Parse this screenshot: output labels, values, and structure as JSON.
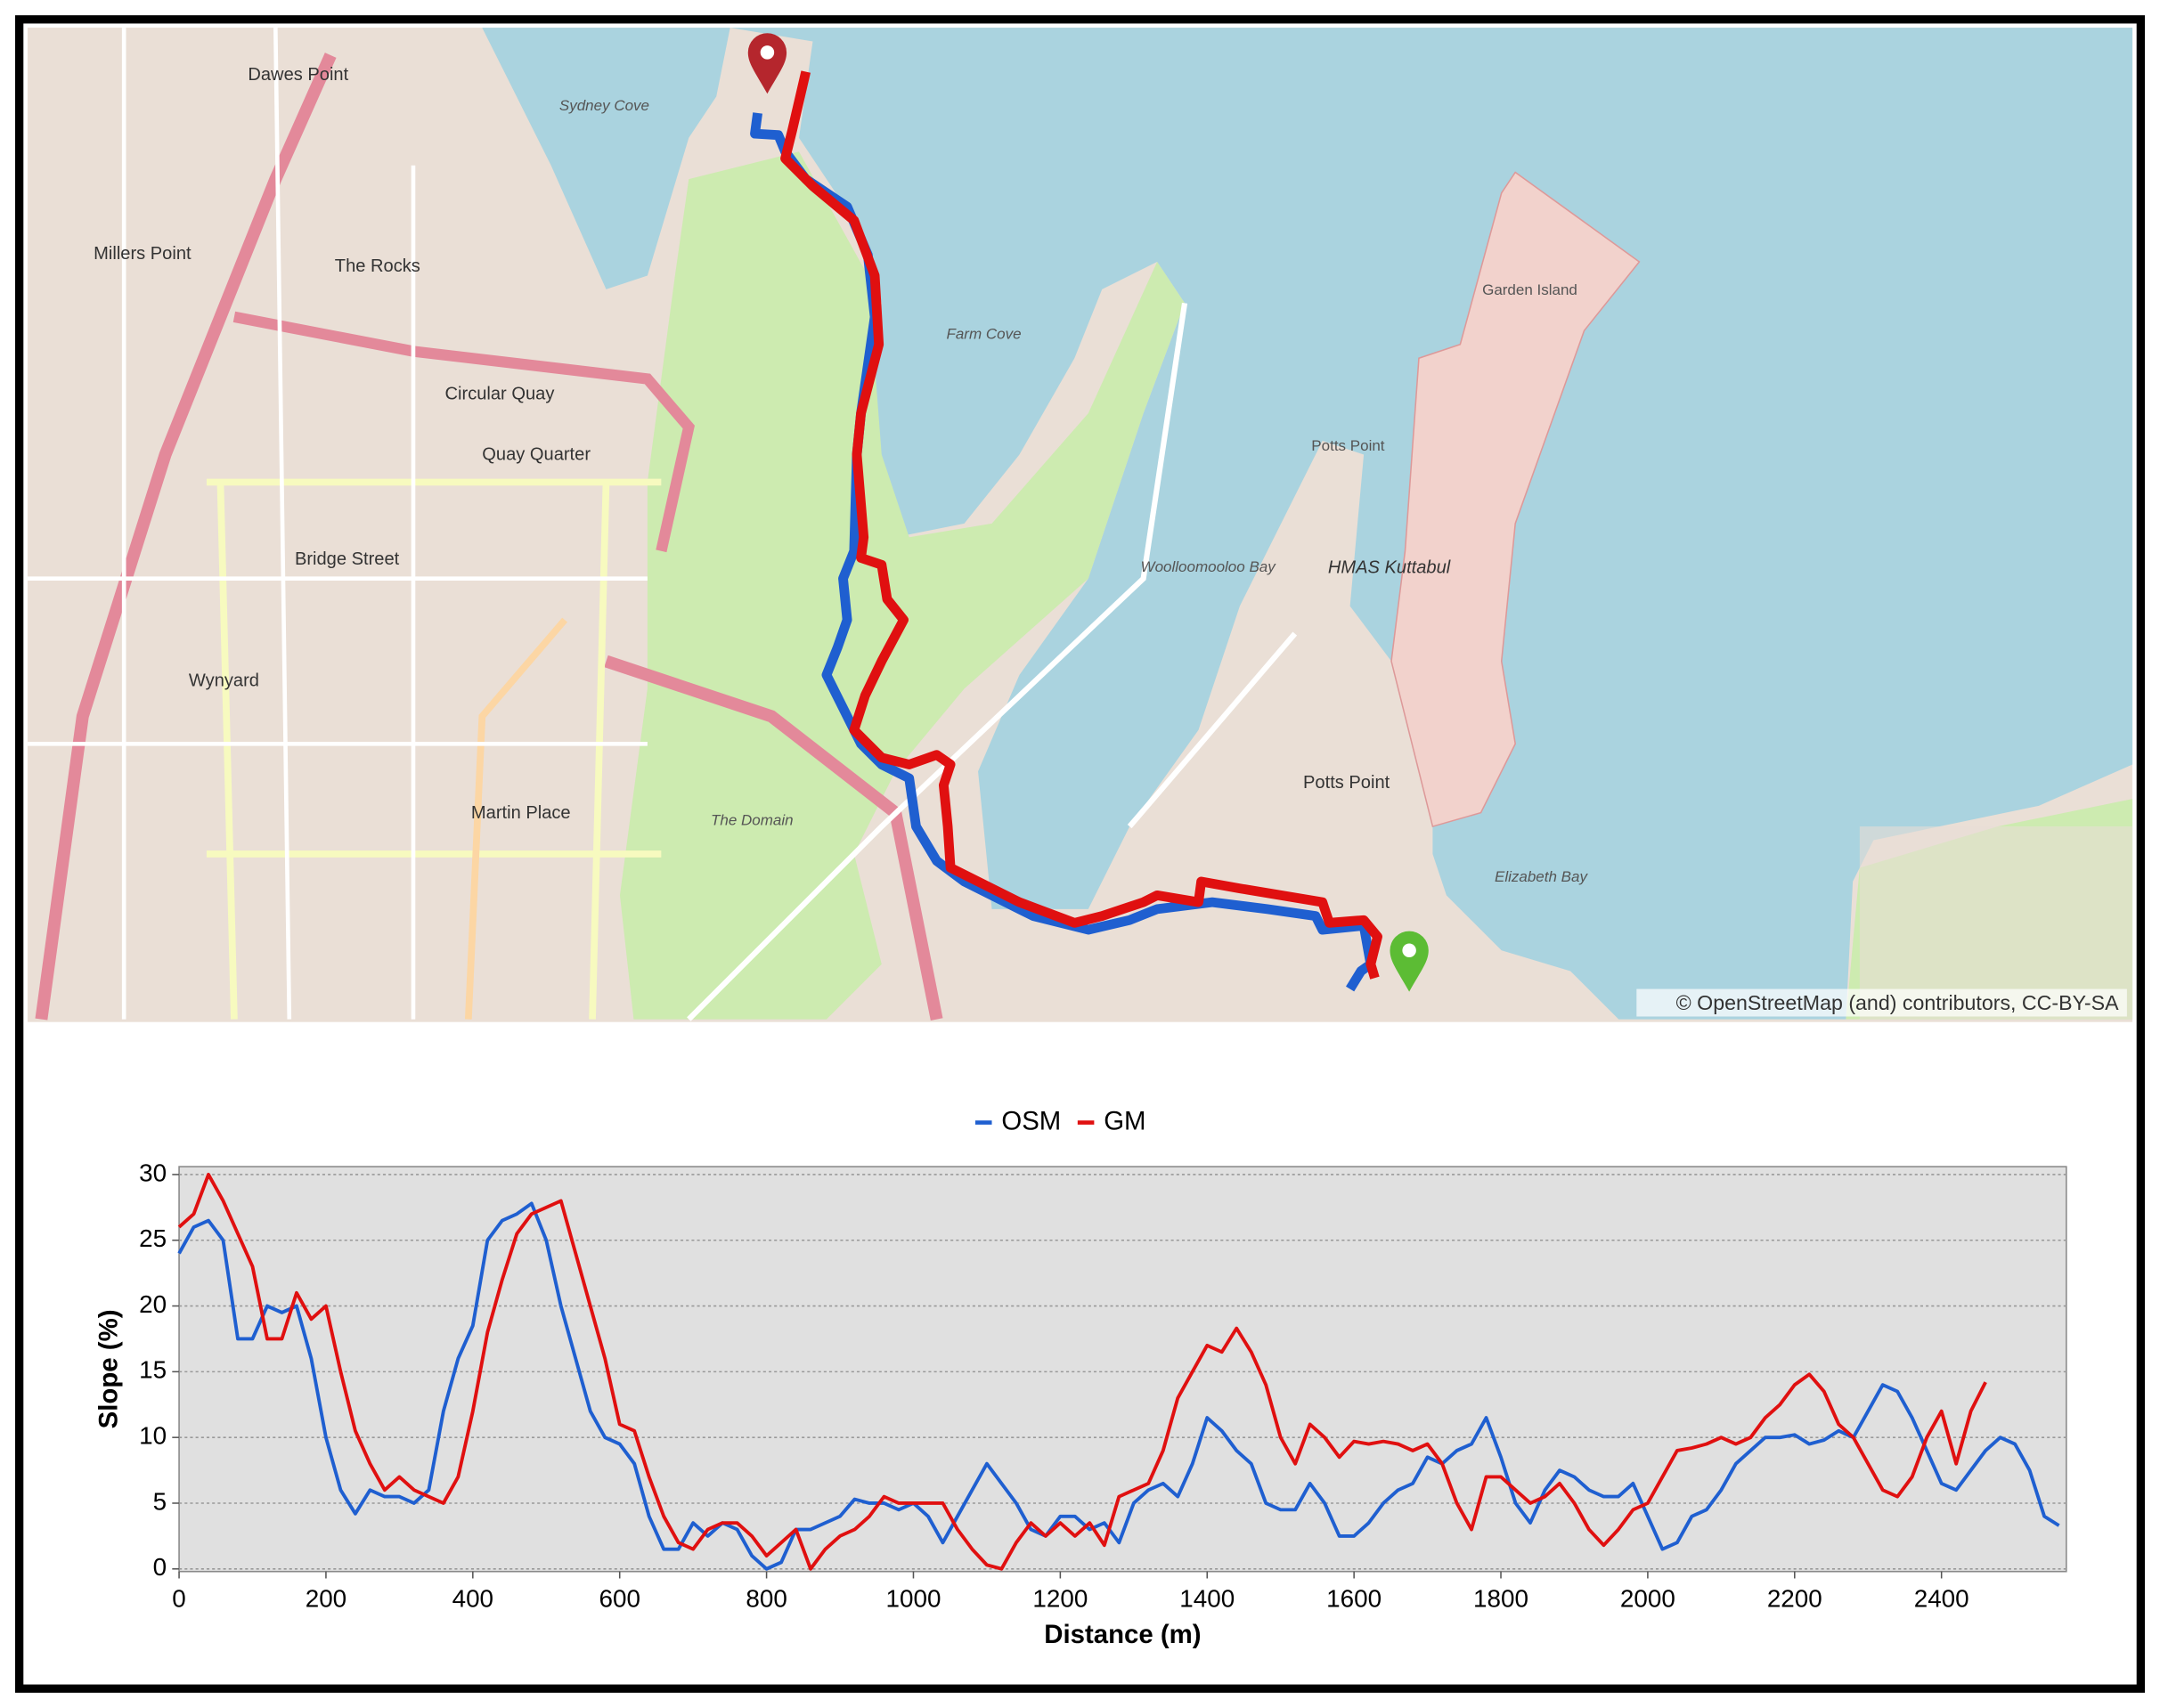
{
  "map": {
    "labels": [
      "Dawes Point",
      "Millers Point",
      "The Rocks",
      "Circular Quay",
      "Quay Quarter",
      "Bridge Street",
      "Wynyard",
      "Martin Place",
      "The Domain",
      "Farm Cove",
      "Woolloomooloo Bay",
      "Potts Point",
      "Potts Point",
      "Garden Island",
      "HMAS Kuttabul",
      "Elizabeth Bay",
      "Sydney Cove"
    ],
    "attribution": "© OpenStreetMap (and) contributors, CC-BY-SA"
  },
  "chart_data": {
    "type": "line",
    "x_label": "Distance (m)",
    "y_label": "Slope (%)",
    "x": [
      0,
      20,
      40,
      60,
      80,
      100,
      120,
      140,
      160,
      180,
      200,
      220,
      240,
      260,
      280,
      300,
      320,
      340,
      360,
      380,
      400,
      420,
      440,
      460,
      480,
      500,
      520,
      540,
      560,
      580,
      600,
      620,
      640,
      660,
      680,
      700,
      720,
      740,
      760,
      780,
      800,
      820,
      840,
      860,
      880,
      900,
      920,
      940,
      960,
      980,
      1000,
      1020,
      1040,
      1060,
      1080,
      1100,
      1120,
      1140,
      1160,
      1180,
      1200,
      1220,
      1240,
      1260,
      1280,
      1300,
      1320,
      1340,
      1360,
      1380,
      1400,
      1420,
      1440,
      1460,
      1480,
      1500,
      1520,
      1540,
      1560,
      1580,
      1600,
      1620,
      1640,
      1660,
      1680,
      1700,
      1720,
      1740,
      1760,
      1780,
      1800,
      1820,
      1840,
      1860,
      1880,
      1900,
      1920,
      1940,
      1960,
      1980,
      2000,
      2020,
      2040,
      2060,
      2080,
      2100,
      2120,
      2140,
      2160,
      2180,
      2200,
      2220,
      2240,
      2260,
      2280,
      2300,
      2320,
      2340,
      2360,
      2380,
      2400,
      2420,
      2440,
      2460,
      2480,
      2500,
      2520,
      2540,
      2560
    ],
    "series": [
      {
        "name": "OSM",
        "color": "#1f5fd0",
        "values": [
          24,
          26,
          26.5,
          25,
          17.5,
          17.5,
          20,
          19.5,
          20,
          16,
          10,
          6,
          4.2,
          6,
          5.5,
          5.5,
          5,
          6,
          12,
          16,
          18.5,
          25,
          26.5,
          27,
          27.8,
          25,
          20,
          16,
          12,
          10,
          9.5,
          8,
          4,
          1.5,
          1.5,
          3.5,
          2.5,
          3.5,
          3,
          1,
          0,
          0.5,
          3,
          3,
          3.5,
          4,
          5.3,
          5,
          5,
          4.5,
          5,
          4,
          2,
          4,
          6,
          8,
          6.5,
          5,
          3,
          2.5,
          4,
          4,
          3,
          3.5,
          2,
          5,
          6,
          6.5,
          5.5,
          8,
          11.5,
          10.5,
          9,
          8,
          5,
          4.5,
          4.5,
          6.5,
          5,
          2.5,
          2.5,
          3.5,
          5,
          6,
          6.5,
          8.5,
          8,
          9,
          9.5,
          11.5,
          8.5,
          5,
          3.5,
          6,
          7.5,
          7,
          6,
          5.5,
          5.5,
          6.5,
          4,
          1.5,
          2,
          4,
          4.5,
          6,
          8,
          9,
          10,
          10,
          10.2,
          9.5,
          9.8,
          10.5,
          10,
          12,
          14,
          13.5,
          11.5,
          9,
          6.5,
          6,
          7.5,
          9,
          10,
          9.5,
          7.5,
          4,
          3.3
        ]
      },
      {
        "name": "GM",
        "color": "#e01010",
        "values": [
          26,
          27,
          30,
          28,
          25.5,
          23,
          17.5,
          17.5,
          21,
          19,
          20,
          15,
          10.5,
          8,
          6,
          7,
          6,
          5.5,
          5,
          7,
          12,
          18,
          22,
          25.5,
          27,
          27.5,
          28,
          24,
          20,
          16,
          11,
          10.5,
          7,
          4,
          2,
          1.5,
          3,
          3.5,
          3.5,
          2.5,
          1,
          2,
          3,
          0,
          1.5,
          2.5,
          3,
          4,
          5.5,
          5,
          5,
          5,
          5,
          3,
          1.5,
          0.3,
          0,
          2,
          3.5,
          2.5,
          3.5,
          2.5,
          3.5,
          1.8,
          5.5,
          6,
          6.5,
          9,
          13,
          15,
          17,
          16.5,
          18.3,
          16.5,
          14,
          10,
          8,
          11,
          10,
          8.5,
          9.7,
          9.5,
          9.7,
          9.5,
          9,
          9.5,
          8,
          5,
          3,
          7,
          7,
          6,
          5,
          5.5,
          6.5,
          5,
          3,
          1.8,
          3,
          4.5,
          5,
          7,
          9,
          9.2,
          9.5,
          10,
          9.5,
          10,
          11.5,
          12.5,
          14,
          14.8,
          13.5,
          11,
          10,
          8,
          6,
          5.5,
          7,
          10,
          12,
          8,
          12,
          14.2,
          null,
          null,
          null,
          null,
          null
        ]
      }
    ],
    "xlim": [
      0,
      2570
    ],
    "ylim": [
      -0.2,
      30.6
    ],
    "xticks": [
      0,
      200,
      400,
      600,
      800,
      1000,
      1200,
      1400,
      1600,
      1800,
      2000,
      2200,
      2400
    ],
    "yticks": [
      0,
      5,
      10,
      15,
      20,
      25,
      30
    ],
    "grid": true,
    "legend": "top"
  }
}
